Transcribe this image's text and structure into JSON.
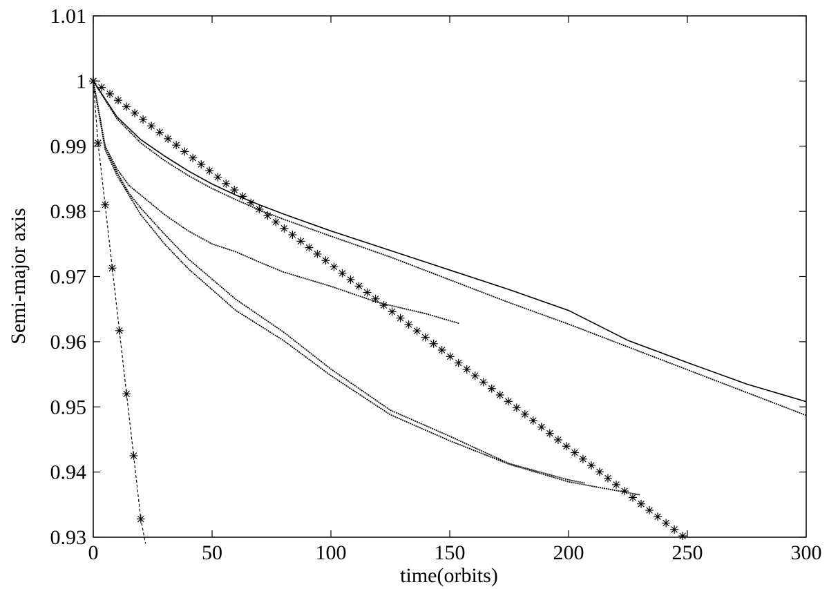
{
  "chart_data": {
    "type": "line",
    "title": "",
    "xlabel": "time(orbits)",
    "ylabel": "Semi-major axis",
    "xlim": [
      0,
      300
    ],
    "ylim": [
      0.93,
      1.01
    ],
    "xticks": [
      0,
      50,
      100,
      150,
      200,
      250,
      300
    ],
    "yticks": [
      0.93,
      0.94,
      0.95,
      0.96,
      0.97,
      0.98,
      0.99,
      1,
      1.01
    ],
    "xtick_labels": [
      "0",
      "50",
      "100",
      "150",
      "200",
      "250",
      "300"
    ],
    "ytick_labels": [
      "0.93",
      "0.94",
      "0.95",
      "0.96",
      "0.97",
      "0.98",
      "0.99",
      "1",
      "1.01"
    ],
    "grid": false,
    "legend": "none",
    "series": [
      {
        "style": "solid",
        "points": [
          [
            0,
            1.0
          ],
          [
            10,
            0.9945
          ],
          [
            20,
            0.991
          ],
          [
            30,
            0.9885
          ],
          [
            40,
            0.9862
          ],
          [
            50,
            0.9842
          ],
          [
            60,
            0.9825
          ],
          [
            70,
            0.981
          ],
          [
            80,
            0.9796
          ],
          [
            100,
            0.977
          ],
          [
            125,
            0.974
          ],
          [
            150,
            0.971
          ],
          [
            175,
            0.968
          ],
          [
            200,
            0.9648
          ],
          [
            225,
            0.9602
          ],
          [
            250,
            0.9568
          ],
          [
            275,
            0.9535
          ],
          [
            300,
            0.9508
          ]
        ]
      },
      {
        "style": "dotted-fine",
        "points": [
          [
            0,
            1.0
          ],
          [
            10,
            0.9942
          ],
          [
            20,
            0.9905
          ],
          [
            30,
            0.9878
          ],
          [
            40,
            0.9855
          ],
          [
            50,
            0.9835
          ],
          [
            60,
            0.9818
          ],
          [
            70,
            0.9802
          ],
          [
            80,
            0.9788
          ],
          [
            100,
            0.9762
          ],
          [
            125,
            0.973
          ],
          [
            150,
            0.9695
          ],
          [
            175,
            0.966
          ],
          [
            200,
            0.9627
          ],
          [
            225,
            0.9592
          ],
          [
            250,
            0.9557
          ],
          [
            275,
            0.9522
          ],
          [
            300,
            0.9487
          ]
        ]
      },
      {
        "style": "dotted-fine",
        "points": [
          [
            0,
            1.0
          ],
          [
            5,
            0.99
          ],
          [
            10,
            0.9865
          ],
          [
            15,
            0.984
          ],
          [
            20,
            0.9825
          ],
          [
            30,
            0.9795
          ],
          [
            40,
            0.977
          ],
          [
            50,
            0.975
          ],
          [
            60,
            0.9738
          ],
          [
            70,
            0.9722
          ],
          [
            80,
            0.9707
          ],
          [
            100,
            0.9685
          ],
          [
            120,
            0.966
          ],
          [
            140,
            0.9643
          ],
          [
            154,
            0.9628
          ]
        ]
      },
      {
        "style": "dotted-fine",
        "points": [
          [
            0,
            1.0
          ],
          [
            5,
            0.99
          ],
          [
            10,
            0.986
          ],
          [
            15,
            0.9828
          ],
          [
            20,
            0.9805
          ],
          [
            30,
            0.9765
          ],
          [
            40,
            0.9727
          ],
          [
            60,
            0.9665
          ],
          [
            80,
            0.9615
          ],
          [
            100,
            0.9558
          ],
          [
            125,
            0.9495
          ],
          [
            150,
            0.9455
          ],
          [
            175,
            0.9413
          ],
          [
            200,
            0.9388
          ],
          [
            207,
            0.9383
          ]
        ]
      },
      {
        "style": "dotted-fine",
        "points": [
          [
            0,
            1.0
          ],
          [
            5,
            0.9895
          ],
          [
            10,
            0.9855
          ],
          [
            20,
            0.9795
          ],
          [
            30,
            0.975
          ],
          [
            40,
            0.9712
          ],
          [
            60,
            0.9648
          ],
          [
            80,
            0.9602
          ],
          [
            100,
            0.9548
          ],
          [
            125,
            0.9488
          ],
          [
            150,
            0.9448
          ],
          [
            175,
            0.9412
          ],
          [
            200,
            0.9385
          ],
          [
            215,
            0.9375
          ],
          [
            230,
            0.9365
          ]
        ]
      },
      {
        "style": "dashed-with-stars",
        "points": [
          [
            0,
            1.0
          ],
          [
            2,
            0.9905
          ],
          [
            5,
            0.981
          ],
          [
            8,
            0.9713
          ],
          [
            11,
            0.9617
          ],
          [
            14,
            0.952
          ],
          [
            17,
            0.9425
          ],
          [
            20,
            0.9328
          ],
          [
            22,
            0.929
          ]
        ],
        "markers": [
          [
            0,
            1.0
          ],
          [
            2,
            0.9905
          ],
          [
            5,
            0.981
          ],
          [
            8,
            0.9713
          ],
          [
            11,
            0.9617
          ],
          [
            14,
            0.952
          ],
          [
            17,
            0.9425
          ],
          [
            20,
            0.9328
          ]
        ]
      },
      {
        "style": "stars-only",
        "start": [
          0,
          1.0
        ],
        "end": [
          248,
          0.9302
        ],
        "marker_spacing": 3.5
      }
    ]
  }
}
